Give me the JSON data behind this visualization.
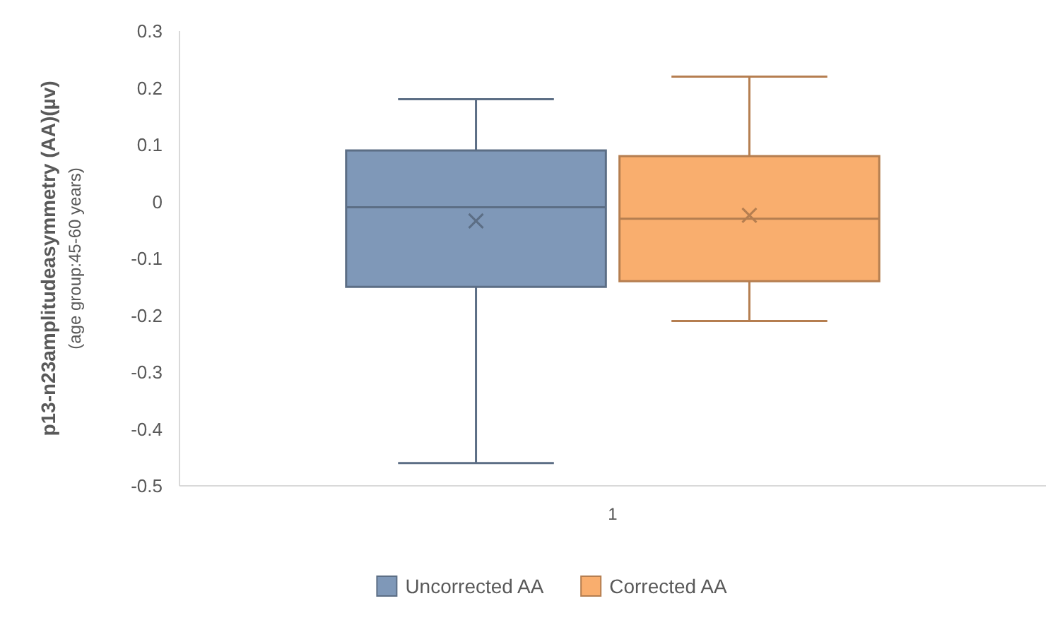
{
  "chart_data": {
    "type": "box",
    "ylabel": "p13-n23amplitudeasymmetry (AA)(µv)\n(age group:45-60 years)",
    "categories": [
      "1"
    ],
    "ylim": [
      -0.5,
      0.3
    ],
    "yticks": [
      -0.5,
      -0.4,
      -0.3,
      -0.2,
      -0.1,
      {
        "value": 0,
        "label": "0"
      },
      0.1,
      0.2,
      0.3
    ],
    "legend": "bottom",
    "grid": false,
    "series": [
      {
        "name": "Uncorrected AA",
        "color": "#7f98b8",
        "boxes": [
          {
            "low": -0.46,
            "q1": -0.15,
            "median": -0.01,
            "q3": 0.09,
            "high": 0.18,
            "mean": -0.034
          }
        ]
      },
      {
        "name": "Corrected AA",
        "color": "#f9ae6e",
        "boxes": [
          {
            "low": -0.21,
            "q1": -0.14,
            "median": -0.03,
            "q3": 0.08,
            "high": 0.22,
            "mean": -0.024
          }
        ]
      }
    ]
  }
}
